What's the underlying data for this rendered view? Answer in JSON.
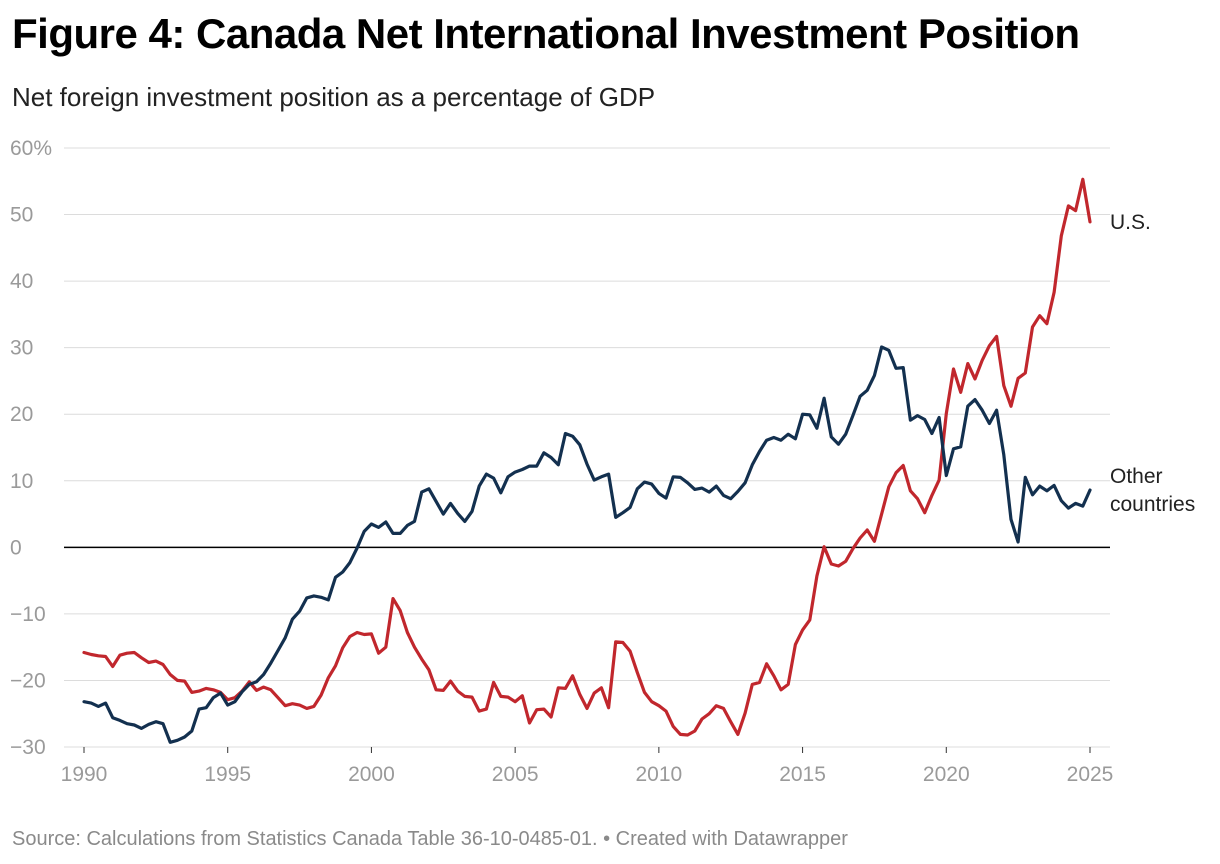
{
  "title": "Figure 4: Canada Net International Investment Position",
  "subtitle": "Net foreign investment position as a percentage of GDP",
  "source": "Source: Calculations from Statistics Canada Table 36-10-0485-01. • Created with Datawrapper",
  "chart_data": {
    "type": "line",
    "ylim": [
      -30,
      60
    ],
    "xlim": [
      1990,
      2025
    ],
    "y_ticks": [
      60,
      50,
      40,
      30,
      20,
      10,
      0,
      -10,
      -20,
      -30
    ],
    "y_tick_labels": [
      "60%",
      "50",
      "40",
      "30",
      "20",
      "10",
      "0",
      "−10",
      "−20",
      "−30"
    ],
    "x_ticks": [
      1990,
      1995,
      2000,
      2005,
      2010,
      2015,
      2020,
      2025
    ],
    "x_tick_labels": [
      "1990",
      "1995",
      "2000",
      "2005",
      "2010",
      "2015",
      "2020",
      "2025"
    ],
    "grid": true,
    "series": [
      {
        "name": "U.S.",
        "color": "#c1272d",
        "label_lines": [
          "U.S."
        ],
        "points": [
          [
            1990.0,
            -15.8
          ],
          [
            1990.25,
            -16.1
          ],
          [
            1990.5,
            -16.3
          ],
          [
            1990.75,
            -16.4
          ],
          [
            1991.0,
            -17.9
          ],
          [
            1991.25,
            -16.2
          ],
          [
            1991.5,
            -15.9
          ],
          [
            1991.75,
            -15.8
          ],
          [
            1992.0,
            -16.6
          ],
          [
            1992.25,
            -17.3
          ],
          [
            1992.5,
            -17.1
          ],
          [
            1992.75,
            -17.6
          ],
          [
            1993.0,
            -19.1
          ],
          [
            1993.25,
            -20.0
          ],
          [
            1993.5,
            -20.1
          ],
          [
            1993.75,
            -21.8
          ],
          [
            1994.0,
            -21.6
          ],
          [
            1994.25,
            -21.2
          ],
          [
            1994.5,
            -21.4
          ],
          [
            1994.75,
            -21.8
          ],
          [
            1995.0,
            -22.9
          ],
          [
            1995.25,
            -22.6
          ],
          [
            1995.5,
            -21.6
          ],
          [
            1995.75,
            -20.2
          ],
          [
            1996.0,
            -21.5
          ],
          [
            1996.25,
            -21.0
          ],
          [
            1996.5,
            -21.4
          ],
          [
            1996.75,
            -22.6
          ],
          [
            1997.0,
            -23.8
          ],
          [
            1997.25,
            -23.5
          ],
          [
            1997.5,
            -23.7
          ],
          [
            1997.75,
            -24.2
          ],
          [
            1998.0,
            -23.9
          ],
          [
            1998.25,
            -22.2
          ],
          [
            1998.5,
            -19.6
          ],
          [
            1998.75,
            -17.8
          ],
          [
            1999.0,
            -15.1
          ],
          [
            1999.25,
            -13.4
          ],
          [
            1999.5,
            -12.8
          ],
          [
            1999.75,
            -13.1
          ],
          [
            2000.0,
            -13.0
          ],
          [
            2000.25,
            -15.9
          ],
          [
            2000.5,
            -15.0
          ],
          [
            2000.75,
            -7.7
          ],
          [
            2001.0,
            -9.5
          ],
          [
            2001.25,
            -12.8
          ],
          [
            2001.5,
            -15.0
          ],
          [
            2001.75,
            -16.8
          ],
          [
            2002.0,
            -18.4
          ],
          [
            2002.25,
            -21.4
          ],
          [
            2002.5,
            -21.5
          ],
          [
            2002.75,
            -20.1
          ],
          [
            2003.0,
            -21.6
          ],
          [
            2003.25,
            -22.4
          ],
          [
            2003.5,
            -22.5
          ],
          [
            2003.75,
            -24.6
          ],
          [
            2004.0,
            -24.3
          ],
          [
            2004.25,
            -20.3
          ],
          [
            2004.5,
            -22.4
          ],
          [
            2004.75,
            -22.5
          ],
          [
            2005.0,
            -23.2
          ],
          [
            2005.25,
            -22.3
          ],
          [
            2005.5,
            -26.4
          ],
          [
            2005.75,
            -24.4
          ],
          [
            2006.0,
            -24.3
          ],
          [
            2006.25,
            -25.5
          ],
          [
            2006.5,
            -21.1
          ],
          [
            2006.75,
            -21.2
          ],
          [
            2007.0,
            -19.3
          ],
          [
            2007.25,
            -22.1
          ],
          [
            2007.5,
            -24.2
          ],
          [
            2007.75,
            -21.9
          ],
          [
            2008.0,
            -21.1
          ],
          [
            2008.25,
            -24.1
          ],
          [
            2008.5,
            -14.2
          ],
          [
            2008.75,
            -14.3
          ],
          [
            2009.0,
            -15.6
          ],
          [
            2009.25,
            -18.8
          ],
          [
            2009.5,
            -21.8
          ],
          [
            2009.75,
            -23.2
          ],
          [
            2010.0,
            -23.8
          ],
          [
            2010.25,
            -24.6
          ],
          [
            2010.5,
            -26.9
          ],
          [
            2010.75,
            -28.1
          ],
          [
            2011.0,
            -28.2
          ],
          [
            2011.25,
            -27.6
          ],
          [
            2011.5,
            -25.8
          ],
          [
            2011.75,
            -25.0
          ],
          [
            2012.0,
            -23.8
          ],
          [
            2012.25,
            -24.2
          ],
          [
            2012.5,
            -26.2
          ],
          [
            2012.75,
            -28.1
          ],
          [
            2013.0,
            -24.9
          ],
          [
            2013.25,
            -20.6
          ],
          [
            2013.5,
            -20.3
          ],
          [
            2013.75,
            -17.5
          ],
          [
            2014.0,
            -19.3
          ],
          [
            2014.25,
            -21.4
          ],
          [
            2014.5,
            -20.6
          ],
          [
            2014.75,
            -14.6
          ],
          [
            2015.0,
            -12.4
          ],
          [
            2015.25,
            -10.9
          ],
          [
            2015.5,
            -4.3
          ],
          [
            2015.75,
            0.1
          ],
          [
            2016.0,
            -2.5
          ],
          [
            2016.25,
            -2.8
          ],
          [
            2016.5,
            -2.1
          ],
          [
            2016.75,
            -0.2
          ],
          [
            2017.0,
            1.4
          ],
          [
            2017.25,
            2.6
          ],
          [
            2017.5,
            0.9
          ],
          [
            2017.75,
            5.0
          ],
          [
            2018.0,
            9.1
          ],
          [
            2018.25,
            11.2
          ],
          [
            2018.5,
            12.3
          ],
          [
            2018.75,
            8.5
          ],
          [
            2019.0,
            7.3
          ],
          [
            2019.25,
            5.2
          ],
          [
            2019.5,
            7.8
          ],
          [
            2019.75,
            10.1
          ],
          [
            2020.0,
            20.1
          ],
          [
            2020.25,
            26.8
          ],
          [
            2020.5,
            23.3
          ],
          [
            2020.75,
            27.6
          ],
          [
            2021.0,
            25.3
          ],
          [
            2021.25,
            28.1
          ],
          [
            2021.5,
            30.3
          ],
          [
            2021.75,
            31.7
          ],
          [
            2022.0,
            24.3
          ],
          [
            2022.25,
            21.2
          ],
          [
            2022.5,
            25.4
          ],
          [
            2022.75,
            26.2
          ],
          [
            2023.0,
            33.1
          ],
          [
            2023.25,
            34.8
          ],
          [
            2023.5,
            33.6
          ],
          [
            2023.75,
            38.3
          ],
          [
            2024.0,
            46.8
          ],
          [
            2024.25,
            51.3
          ],
          [
            2024.5,
            50.6
          ],
          [
            2024.75,
            55.3
          ],
          [
            2025.0,
            48.9
          ]
        ]
      },
      {
        "name": "Other countries",
        "color": "#13304f",
        "label_lines": [
          "Other",
          "countries"
        ],
        "points": [
          [
            1990.0,
            -23.2
          ],
          [
            1990.25,
            -23.4
          ],
          [
            1990.5,
            -23.9
          ],
          [
            1990.75,
            -23.4
          ],
          [
            1991.0,
            -25.6
          ],
          [
            1991.25,
            -26.0
          ],
          [
            1991.5,
            -26.5
          ],
          [
            1991.75,
            -26.7
          ],
          [
            1992.0,
            -27.2
          ],
          [
            1992.25,
            -26.6
          ],
          [
            1992.5,
            -26.2
          ],
          [
            1992.75,
            -26.5
          ],
          [
            1993.0,
            -29.3
          ],
          [
            1993.25,
            -29.0
          ],
          [
            1993.5,
            -28.5
          ],
          [
            1993.75,
            -27.6
          ],
          [
            1994.0,
            -24.3
          ],
          [
            1994.25,
            -24.1
          ],
          [
            1994.5,
            -22.6
          ],
          [
            1994.75,
            -21.9
          ],
          [
            1995.0,
            -23.7
          ],
          [
            1995.25,
            -23.2
          ],
          [
            1995.5,
            -21.7
          ],
          [
            1995.75,
            -20.6
          ],
          [
            1996.0,
            -20.2
          ],
          [
            1996.25,
            -19.1
          ],
          [
            1996.5,
            -17.4
          ],
          [
            1996.75,
            -15.5
          ],
          [
            1997.0,
            -13.6
          ],
          [
            1997.25,
            -10.8
          ],
          [
            1997.5,
            -9.6
          ],
          [
            1997.75,
            -7.6
          ],
          [
            1998.0,
            -7.3
          ],
          [
            1998.25,
            -7.5
          ],
          [
            1998.5,
            -7.9
          ],
          [
            1998.75,
            -4.5
          ],
          [
            1999.0,
            -3.7
          ],
          [
            1999.25,
            -2.3
          ],
          [
            1999.5,
            -0.1
          ],
          [
            1999.75,
            2.4
          ],
          [
            2000.0,
            3.5
          ],
          [
            2000.25,
            3.0
          ],
          [
            2000.5,
            3.8
          ],
          [
            2000.75,
            2.1
          ],
          [
            2001.0,
            2.1
          ],
          [
            2001.25,
            3.3
          ],
          [
            2001.5,
            3.9
          ],
          [
            2001.75,
            8.3
          ],
          [
            2002.0,
            8.8
          ],
          [
            2002.25,
            6.9
          ],
          [
            2002.5,
            5.0
          ],
          [
            2002.75,
            6.6
          ],
          [
            2003.0,
            5.1
          ],
          [
            2003.25,
            3.9
          ],
          [
            2003.5,
            5.4
          ],
          [
            2003.75,
            9.2
          ],
          [
            2004.0,
            11.0
          ],
          [
            2004.25,
            10.4
          ],
          [
            2004.5,
            8.2
          ],
          [
            2004.75,
            10.6
          ],
          [
            2005.0,
            11.3
          ],
          [
            2005.25,
            11.7
          ],
          [
            2005.5,
            12.2
          ],
          [
            2005.75,
            12.2
          ],
          [
            2006.0,
            14.2
          ],
          [
            2006.25,
            13.5
          ],
          [
            2006.5,
            12.4
          ],
          [
            2006.75,
            17.1
          ],
          [
            2007.0,
            16.7
          ],
          [
            2007.25,
            15.4
          ],
          [
            2007.5,
            12.5
          ],
          [
            2007.75,
            10.1
          ],
          [
            2008.0,
            10.6
          ],
          [
            2008.25,
            11.0
          ],
          [
            2008.5,
            4.5
          ],
          [
            2008.75,
            5.2
          ],
          [
            2009.0,
            6.0
          ],
          [
            2009.25,
            8.8
          ],
          [
            2009.5,
            9.8
          ],
          [
            2009.75,
            9.5
          ],
          [
            2010.0,
            8.1
          ],
          [
            2010.25,
            7.4
          ],
          [
            2010.5,
            10.6
          ],
          [
            2010.75,
            10.5
          ],
          [
            2011.0,
            9.7
          ],
          [
            2011.25,
            8.7
          ],
          [
            2011.5,
            8.9
          ],
          [
            2011.75,
            8.3
          ],
          [
            2012.0,
            9.2
          ],
          [
            2012.25,
            7.8
          ],
          [
            2012.5,
            7.3
          ],
          [
            2012.75,
            8.4
          ],
          [
            2013.0,
            9.7
          ],
          [
            2013.25,
            12.4
          ],
          [
            2013.5,
            14.4
          ],
          [
            2013.75,
            16.1
          ],
          [
            2014.0,
            16.5
          ],
          [
            2014.25,
            16.1
          ],
          [
            2014.5,
            17.0
          ],
          [
            2014.75,
            16.3
          ],
          [
            2015.0,
            20.0
          ],
          [
            2015.25,
            19.9
          ],
          [
            2015.5,
            17.9
          ],
          [
            2015.75,
            22.4
          ],
          [
            2016.0,
            16.6
          ],
          [
            2016.25,
            15.5
          ],
          [
            2016.5,
            17.0
          ],
          [
            2016.75,
            19.8
          ],
          [
            2017.0,
            22.7
          ],
          [
            2017.25,
            23.6
          ],
          [
            2017.5,
            25.8
          ],
          [
            2017.75,
            30.1
          ],
          [
            2018.0,
            29.6
          ],
          [
            2018.25,
            26.9
          ],
          [
            2018.5,
            27.0
          ],
          [
            2018.75,
            19.1
          ],
          [
            2019.0,
            19.8
          ],
          [
            2019.25,
            19.2
          ],
          [
            2019.5,
            17.1
          ],
          [
            2019.75,
            19.5
          ],
          [
            2020.0,
            10.8
          ],
          [
            2020.25,
            14.8
          ],
          [
            2020.5,
            15.1
          ],
          [
            2020.75,
            21.2
          ],
          [
            2021.0,
            22.2
          ],
          [
            2021.25,
            20.6
          ],
          [
            2021.5,
            18.6
          ],
          [
            2021.75,
            20.6
          ],
          [
            2022.0,
            13.9
          ],
          [
            2022.25,
            4.2
          ],
          [
            2022.5,
            0.8
          ],
          [
            2022.75,
            10.5
          ],
          [
            2023.0,
            7.9
          ],
          [
            2023.25,
            9.2
          ],
          [
            2023.5,
            8.5
          ],
          [
            2023.75,
            9.3
          ],
          [
            2024.0,
            7.0
          ],
          [
            2024.25,
            5.9
          ],
          [
            2024.5,
            6.6
          ],
          [
            2024.75,
            6.2
          ],
          [
            2025.0,
            8.6
          ]
        ]
      }
    ]
  }
}
